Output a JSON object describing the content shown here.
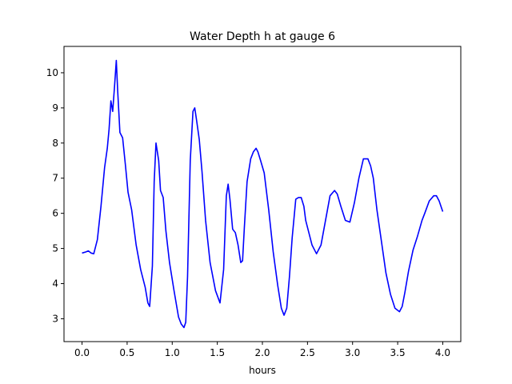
{
  "chart_data": {
    "type": "line",
    "title": "Water Depth h at gauge 6",
    "xlabel": "hours",
    "ylabel": "",
    "xlim": [
      -0.2,
      4.2
    ],
    "ylim": [
      2.35,
      10.75
    ],
    "xticks": [
      0.0,
      0.5,
      1.0,
      1.5,
      2.0,
      2.5,
      3.0,
      3.5,
      4.0
    ],
    "xtick_labels": [
      "0.0",
      "0.5",
      "1.0",
      "1.5",
      "2.0",
      "2.5",
      "3.0",
      "3.5",
      "4.0"
    ],
    "yticks": [
      3,
      4,
      5,
      6,
      7,
      8,
      9,
      10
    ],
    "ytick_labels": [
      "3",
      "4",
      "5",
      "6",
      "7",
      "8",
      "9",
      "10"
    ],
    "grid": false,
    "legend": "none",
    "series": [
      {
        "color": "#0000ff",
        "x": [
          0.0,
          0.04,
          0.07,
          0.1,
          0.13,
          0.17,
          0.21,
          0.25,
          0.28,
          0.3,
          0.32,
          0.34,
          0.36,
          0.38,
          0.395,
          0.42,
          0.45,
          0.48,
          0.51,
          0.55,
          0.6,
          0.65,
          0.7,
          0.73,
          0.75,
          0.78,
          0.8,
          0.82,
          0.85,
          0.87,
          0.9,
          0.93,
          0.97,
          1.02,
          1.07,
          1.1,
          1.13,
          1.15,
          1.17,
          1.2,
          1.23,
          1.25,
          1.27,
          1.3,
          1.33,
          1.37,
          1.42,
          1.48,
          1.53,
          1.57,
          1.6,
          1.62,
          1.64,
          1.67,
          1.7,
          1.73,
          1.76,
          1.78,
          1.8,
          1.83,
          1.87,
          1.9,
          1.93,
          1.95,
          1.98,
          2.02,
          2.07,
          2.12,
          2.17,
          2.21,
          2.24,
          2.27,
          2.3,
          2.33,
          2.37,
          2.4,
          2.43,
          2.46,
          2.48,
          2.5,
          2.55,
          2.6,
          2.65,
          2.7,
          2.75,
          2.8,
          2.83,
          2.87,
          2.92,
          2.97,
          3.02,
          3.07,
          3.12,
          3.17,
          3.2,
          3.23,
          3.27,
          3.32,
          3.37,
          3.42,
          3.47,
          3.52,
          3.55,
          3.58,
          3.62,
          3.67,
          3.72,
          3.77,
          3.8,
          3.85,
          3.9,
          3.93,
          3.96,
          4.0
        ],
        "y": [
          4.87,
          4.9,
          4.93,
          4.87,
          4.85,
          5.25,
          6.2,
          7.3,
          7.85,
          8.4,
          9.2,
          8.9,
          9.6,
          10.35,
          9.5,
          8.3,
          8.15,
          7.4,
          6.6,
          6.1,
          5.1,
          4.4,
          3.9,
          3.45,
          3.35,
          4.5,
          6.9,
          8.0,
          7.5,
          6.65,
          6.45,
          5.5,
          4.6,
          3.8,
          3.05,
          2.85,
          2.75,
          2.9,
          4.2,
          7.5,
          8.9,
          9.0,
          8.65,
          8.1,
          7.2,
          5.8,
          4.6,
          3.8,
          3.45,
          4.4,
          6.5,
          6.83,
          6.4,
          5.55,
          5.45,
          5.1,
          4.6,
          4.65,
          5.6,
          6.9,
          7.55,
          7.75,
          7.85,
          7.75,
          7.5,
          7.15,
          6.1,
          4.9,
          3.95,
          3.3,
          3.1,
          3.3,
          4.2,
          5.3,
          6.4,
          6.45,
          6.45,
          6.2,
          5.8,
          5.6,
          5.1,
          4.85,
          5.1,
          5.8,
          6.5,
          6.65,
          6.55,
          6.2,
          5.8,
          5.75,
          6.3,
          7.0,
          7.55,
          7.55,
          7.35,
          7.0,
          6.1,
          5.2,
          4.3,
          3.7,
          3.3,
          3.2,
          3.35,
          3.75,
          4.35,
          4.95,
          5.35,
          5.8,
          6.0,
          6.35,
          6.5,
          6.5,
          6.35,
          6.05
        ]
      }
    ]
  }
}
